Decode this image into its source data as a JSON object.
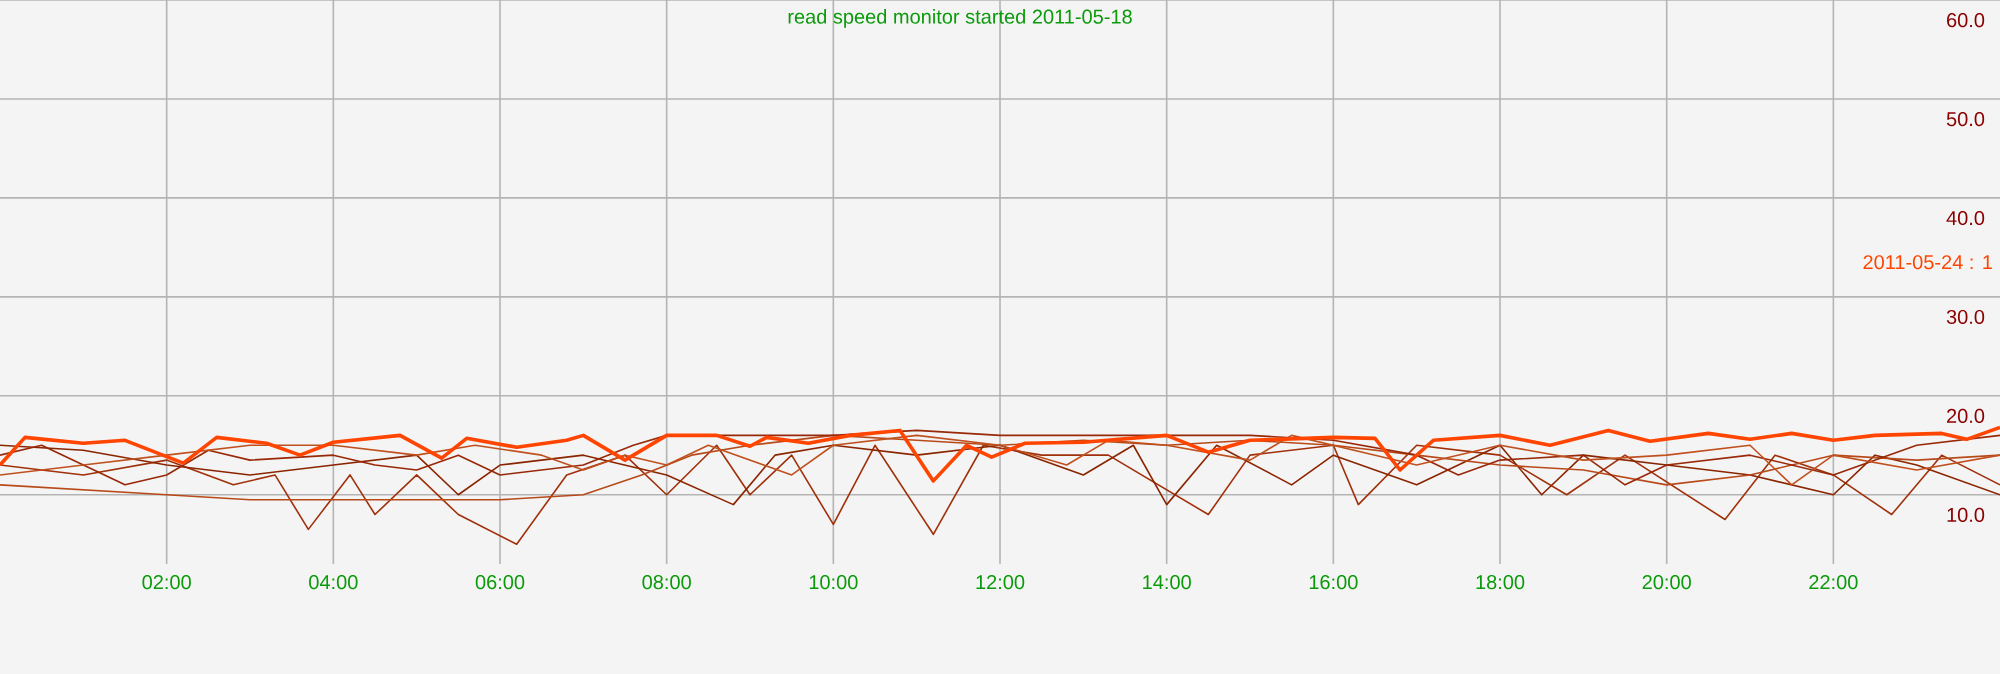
{
  "chart_data": {
    "type": "line",
    "title": "read speed monitor started 2011-05-18",
    "xlim": [
      0,
      24
    ],
    "ylim": [
      3,
      60
    ],
    "xticks": [
      {
        "value": 2,
        "label": "02:00"
      },
      {
        "value": 4,
        "label": "04:00"
      },
      {
        "value": 6,
        "label": "06:00"
      },
      {
        "value": 8,
        "label": "08:00"
      },
      {
        "value": 10,
        "label": "10:00"
      },
      {
        "value": 12,
        "label": "12:00"
      },
      {
        "value": 14,
        "label": "14:00"
      },
      {
        "value": 16,
        "label": "16:00"
      },
      {
        "value": 18,
        "label": "18:00"
      },
      {
        "value": 20,
        "label": "20:00"
      },
      {
        "value": 22,
        "label": "22:00"
      }
    ],
    "yticks": [
      {
        "value": 10,
        "label": "10.0"
      },
      {
        "value": 20,
        "label": "20.0"
      },
      {
        "value": 30,
        "label": "30.0"
      },
      {
        "value": 40,
        "label": "40.0"
      },
      {
        "value": 50,
        "label": "50.0"
      },
      {
        "value": 60,
        "label": "60.0"
      }
    ],
    "grid": true,
    "marker": "none",
    "line_style": "solid",
    "series": [
      {
        "color": "#a0300a",
        "x": [
          0,
          1,
          2,
          2.8,
          3.3,
          3.7,
          4.2,
          4.5,
          5,
          5.5,
          6.2,
          6.8,
          7.5,
          8,
          8.6,
          9,
          9.5,
          10,
          10.5,
          11.2,
          11.8,
          12.5,
          13.3,
          14.5,
          15,
          16,
          16.3,
          17,
          18,
          18.8,
          19.5,
          20.7,
          21.3,
          22,
          22.7,
          23.3,
          24
        ],
        "values": [
          13,
          12,
          13.5,
          11,
          12,
          6.5,
          12,
          8,
          12,
          8,
          5,
          12,
          14,
          10,
          15,
          10,
          14,
          7,
          15,
          6,
          15,
          14,
          14,
          8,
          14,
          15,
          9,
          15,
          14,
          10,
          14,
          7.5,
          14,
          12,
          8,
          14,
          11
        ]
      },
      {
        "color": "#8b2500",
        "x": [
          0,
          1,
          2,
          3,
          4,
          5,
          5.5,
          6,
          7,
          8,
          8.8,
          9.3,
          10,
          11,
          12,
          13,
          13.6,
          14,
          14.6,
          15.5,
          16,
          17,
          18,
          18.5,
          19,
          20,
          21,
          22,
          22.5,
          23,
          24
        ],
        "values": [
          15,
          14.5,
          13,
          12,
          13,
          14,
          10,
          13,
          14,
          12,
          9,
          14,
          15,
          14,
          15,
          12,
          15,
          9,
          15,
          11,
          14,
          11,
          15,
          10,
          14,
          13,
          12,
          10,
          14,
          13,
          10
        ]
      },
      {
        "color": "#b84a1a",
        "x": [
          0,
          1,
          2,
          3,
          4,
          5,
          6,
          7,
          7.7,
          8.3,
          9,
          10,
          11,
          12,
          13,
          14,
          15,
          16,
          17,
          18,
          19,
          20,
          21,
          22,
          23,
          24
        ],
        "values": [
          11,
          10.5,
          10,
          9.5,
          9.5,
          9.5,
          9.5,
          10,
          12,
          14,
          15,
          16,
          15.5,
          15,
          15.5,
          15,
          15.5,
          15,
          14,
          13,
          12.5,
          11,
          12,
          14,
          13.5,
          14
        ]
      },
      {
        "color": "#982808",
        "x": [
          0,
          0.5,
          1,
          1.5,
          2,
          2.5,
          3,
          4,
          4.5,
          5,
          5.5,
          6,
          7,
          7.6,
          8,
          9,
          10,
          11,
          12,
          13,
          14,
          15,
          16,
          17,
          17.5,
          18,
          19,
          19.5,
          20,
          21,
          22,
          23,
          24
        ],
        "values": [
          14,
          15,
          13,
          11,
          12,
          14.5,
          13.5,
          14,
          13,
          12.5,
          14,
          12,
          13,
          15,
          16,
          16,
          16,
          16.5,
          16,
          16,
          16,
          16,
          15.5,
          14,
          12,
          13.5,
          14,
          11,
          13,
          14,
          12,
          15,
          16
        ]
      },
      {
        "color": "#c0501e",
        "x": [
          0,
          1,
          2,
          3,
          4,
          5,
          5.7,
          6.5,
          7,
          7.5,
          8,
          8.5,
          9.5,
          10,
          11,
          12,
          12.8,
          13.3,
          14,
          15,
          15.5,
          16.5,
          17,
          18,
          19,
          20,
          21,
          21.5,
          22,
          23,
          24
        ],
        "values": [
          12,
          13,
          14,
          15,
          15,
          14,
          15,
          14,
          12.5,
          14,
          13,
          15,
          12,
          15,
          16,
          15,
          13,
          15.5,
          15,
          13.5,
          16,
          14,
          13,
          15,
          13.5,
          14,
          15,
          11,
          14,
          12.5,
          14
        ]
      },
      {
        "name": "2011-05-24 : 1",
        "color": "#ff4500",
        "x": [
          0,
          0.3,
          1,
          1.5,
          2.2,
          2.6,
          3.2,
          3.6,
          4,
          4.8,
          5.3,
          5.6,
          6.2,
          6.8,
          7,
          7.5,
          8,
          8.6,
          9,
          9.2,
          9.7,
          10.2,
          10.8,
          11.2,
          11.6,
          11.9,
          12.3,
          13,
          14,
          14.5,
          15,
          16,
          16.5,
          16.8,
          17.2,
          18,
          18.6,
          19.3,
          19.8,
          20.5,
          21,
          21.5,
          22,
          22.5,
          23.3,
          23.6,
          24
        ],
        "values": [
          13,
          15.8,
          15.2,
          15.5,
          13.2,
          15.8,
          15.2,
          14,
          15.3,
          16,
          13.7,
          15.7,
          14.8,
          15.5,
          16,
          13.5,
          16,
          16,
          14.9,
          15.8,
          15.2,
          16,
          16.5,
          11.4,
          15,
          13.8,
          15.2,
          15.3,
          16,
          14.3,
          15.5,
          15.8,
          15.7,
          12.5,
          15.5,
          16,
          15,
          16.5,
          15.4,
          16.2,
          15.6,
          16.2,
          15.5,
          16,
          16.2,
          15.6,
          16.8
        ]
      }
    ]
  }
}
